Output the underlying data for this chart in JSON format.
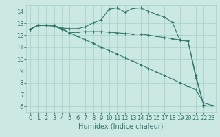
{
  "line_color": "#2d7a6e",
  "bg_color": "#cce8e2",
  "grid_color": "#a8d4cc",
  "xlabel": "Humidex (Indice chaleur)",
  "xlabel_fontsize": 7,
  "tick_fontsize": 6,
  "xlim": [
    -0.5,
    23.5
  ],
  "ylim": [
    5.5,
    14.5
  ],
  "yticks": [
    6,
    7,
    8,
    9,
    10,
    11,
    12,
    13,
    14
  ],
  "xticks": [
    0,
    1,
    2,
    3,
    4,
    5,
    6,
    7,
    8,
    9,
    10,
    11,
    12,
    13,
    14,
    15,
    16,
    17,
    18,
    19,
    20,
    21,
    22,
    23
  ],
  "line1_x": [
    0,
    1,
    2,
    3,
    4,
    5,
    6,
    7,
    8,
    9,
    10,
    11,
    12,
    13,
    14,
    15,
    16,
    17,
    18,
    19,
    20,
    21,
    22,
    23
  ],
  "line1_y": [
    12.5,
    12.85,
    12.85,
    12.8,
    12.6,
    12.55,
    12.55,
    12.7,
    13.05,
    13.3,
    14.2,
    14.3,
    13.95,
    14.25,
    14.3,
    14.0,
    13.75,
    13.5,
    13.1,
    11.55,
    11.5,
    8.6,
    6.1,
    6.1
  ],
  "line2_x": [
    0,
    1,
    2,
    3,
    4,
    5,
    6,
    7,
    8,
    9,
    10,
    11,
    12,
    13,
    14,
    15,
    16,
    17,
    18,
    19,
    20,
    21,
    22
  ],
  "line2_y": [
    12.5,
    12.85,
    12.85,
    12.8,
    12.55,
    12.2,
    12.25,
    12.3,
    12.3,
    12.3,
    12.25,
    12.2,
    12.15,
    12.1,
    12.1,
    12.0,
    11.9,
    11.8,
    11.7,
    11.6,
    11.55,
    8.4,
    6.1
  ],
  "line3_x": [
    0,
    1,
    2,
    3,
    4,
    5,
    6,
    7,
    8,
    9,
    10,
    11,
    12,
    13,
    14,
    15,
    16,
    17,
    18,
    19,
    20,
    21,
    22,
    23
  ],
  "line3_y": [
    12.5,
    12.8,
    12.8,
    12.75,
    12.5,
    12.2,
    11.9,
    11.6,
    11.3,
    11.0,
    10.7,
    10.4,
    10.1,
    9.8,
    9.5,
    9.2,
    8.9,
    8.6,
    8.3,
    8.0,
    7.7,
    7.4,
    6.3,
    6.1
  ],
  "marker": "+",
  "markersize": 3,
  "linewidth": 0.8
}
